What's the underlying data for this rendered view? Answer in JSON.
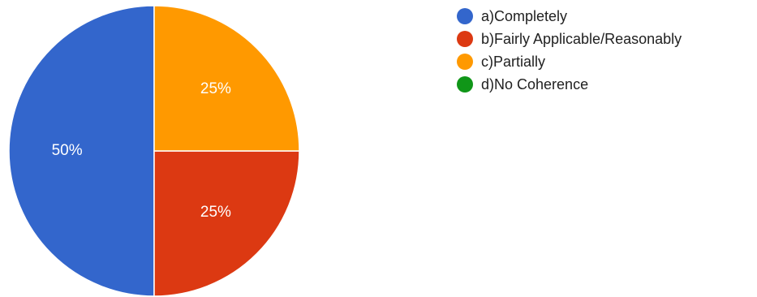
{
  "chart_data": {
    "type": "pie",
    "slices": [
      {
        "label": "a)Completely",
        "value": 50,
        "value_label": "50%",
        "color": "#3366cc"
      },
      {
        "label": "b)Fairly Applicable/Reasonably",
        "value": 25,
        "value_label": "25%",
        "color": "#dc3912"
      },
      {
        "label": "c)Partially",
        "value": 25,
        "value_label": "25%",
        "color": "#ff9900"
      },
      {
        "label": "d)No Coherence",
        "value": 0,
        "value_label": "",
        "color": "#109618"
      }
    ],
    "legend_position": "right",
    "start_angle_deg": 0,
    "direction": "clockwise"
  }
}
